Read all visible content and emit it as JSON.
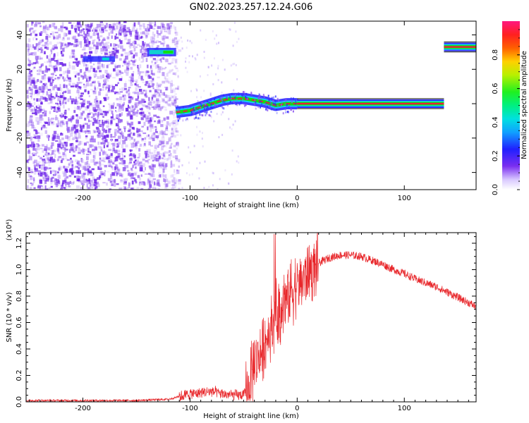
{
  "title": "GN02.2023.257.12.24.G06",
  "chart_data": [
    {
      "type": "heatmap",
      "xlabel": "Height of straight line (km)",
      "ylabel": "Frequency (Hz)",
      "xlim": [
        -253,
        167
      ],
      "ylim": [
        -50,
        48
      ],
      "xticks": [
        -200,
        -100,
        0,
        100
      ],
      "xtick_labels": [
        "-200",
        "-100",
        "0",
        "100"
      ],
      "yticks": [
        -40,
        -20,
        0,
        20,
        40
      ],
      "ytick_labels": [
        "-40",
        "-20",
        "0",
        "20",
        "40"
      ],
      "colorbar": {
        "label": "Normalized spectral amplitude",
        "range": [
          0,
          1
        ],
        "ticks": [
          0.0,
          0.2,
          0.4,
          0.6,
          0.8
        ],
        "tick_labels": [
          "0.0",
          "0.2",
          "0.4",
          "0.6",
          "0.8"
        ]
      },
      "features": {
        "noise_region_x": [
          -253,
          -115
        ],
        "weak_trace_x": [
          -200,
          -170
        ],
        "weak_trace_y": 26,
        "upper_trace_x": [
          -140,
          -113
        ],
        "upper_trace_y": 30,
        "rising_trace": [
          {
            "x": -113,
            "y": -5
          },
          {
            "x": -100,
            "y": -4
          },
          {
            "x": -90,
            "y": -2
          },
          {
            "x": -80,
            "y": 0
          },
          {
            "x": -70,
            "y": 2
          },
          {
            "x": -60,
            "y": 3
          },
          {
            "x": -50,
            "y": 3
          },
          {
            "x": -40,
            "y": 2
          },
          {
            "x": -30,
            "y": 1
          },
          {
            "x": -20,
            "y": -1
          },
          {
            "x": -10,
            "y": 0
          },
          {
            "x": 0,
            "y": 0
          }
        ],
        "flat_trace_x": [
          0,
          137
        ],
        "flat_trace_y": 0,
        "right_trace_x": [
          137,
          167
        ],
        "right_trace_y": 33
      },
      "colors": {
        "trace_core": "#e8203c",
        "trace_mid": "#10e010",
        "trace_edge": "#2a2aff",
        "noise": "#6a1fe8"
      }
    },
    {
      "type": "line",
      "xlabel": "Height of straight line (km)",
      "ylabel": "SNR (10 * v/v)",
      "y_multiplier_label": "(x10⁴)",
      "xlim": [
        -253,
        167
      ],
      "ylim": [
        0,
        1.28
      ],
      "xticks": [
        -200,
        -100,
        0,
        100
      ],
      "xtick_labels": [
        "-200",
        "-100",
        "0",
        "100"
      ],
      "yticks": [
        0.0,
        0.2,
        0.4,
        0.6,
        0.8,
        1.0,
        1.2
      ],
      "ytick_labels": [
        "0.0",
        "0.2",
        "0.4",
        "0.6",
        "0.8",
        "1.0",
        "1.2"
      ],
      "series": [
        {
          "color": "#e8262a",
          "x": [
            -253,
            -200,
            -150,
            -120,
            -110,
            -100,
            -90,
            -80,
            -70,
            -60,
            -50,
            -45,
            -40,
            -35,
            -30,
            -25,
            -20,
            -15,
            -10,
            -5,
            0,
            10,
            20,
            30,
            40,
            50,
            60,
            70,
            80,
            90,
            100,
            110,
            120,
            130,
            140,
            150,
            160,
            167
          ],
          "y": [
            0.01,
            0.01,
            0.01,
            0.02,
            0.04,
            0.06,
            0.07,
            0.08,
            0.06,
            0.05,
            0.05,
            0.1,
            0.3,
            0.35,
            0.45,
            0.55,
            0.65,
            0.72,
            0.78,
            0.85,
            0.88,
            0.98,
            1.05,
            1.09,
            1.11,
            1.11,
            1.1,
            1.07,
            1.04,
            1.0,
            0.97,
            0.93,
            0.9,
            0.87,
            0.83,
            0.79,
            0.75,
            0.72
          ]
        }
      ]
    }
  ]
}
